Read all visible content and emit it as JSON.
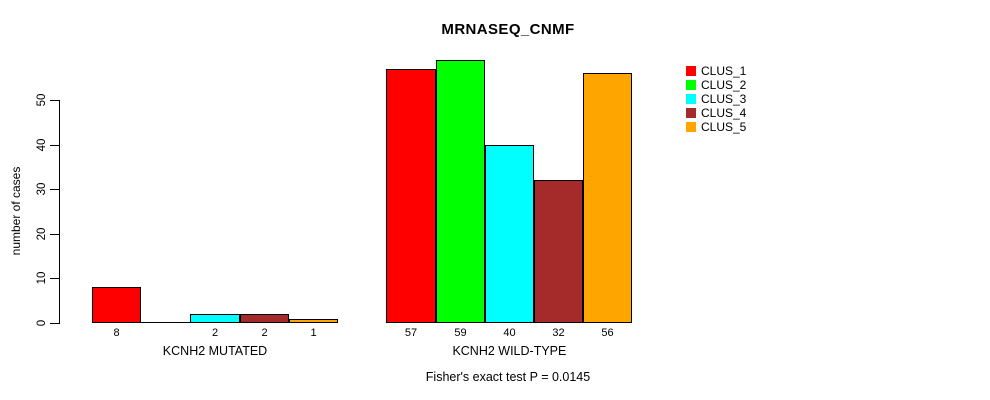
{
  "chart_data": {
    "type": "bar",
    "title": "MRNASEQ_CNMF",
    "ylabel": "number of cases",
    "xlabel": "",
    "annotation": "Fisher's exact test P = 0.0145",
    "ylim": [
      0,
      59
    ],
    "yticks": [
      0,
      10,
      20,
      30,
      40,
      50
    ],
    "grid": false,
    "legend_position": "right",
    "categories": [
      "KCNH2 MUTATED",
      "KCNH2 WILD-TYPE"
    ],
    "series": [
      {
        "name": "CLUS_1",
        "color": "#FF0000",
        "values": [
          8,
          57
        ]
      },
      {
        "name": "CLUS_2",
        "color": "#00FF00",
        "values": [
          0,
          59
        ]
      },
      {
        "name": "CLUS_3",
        "color": "#00FFFF",
        "values": [
          2,
          40
        ]
      },
      {
        "name": "CLUS_4",
        "color": "#A52A2A",
        "values": [
          2,
          32
        ]
      },
      {
        "name": "CLUS_5",
        "color": "#FFA500",
        "values": [
          1,
          56
        ]
      }
    ],
    "bar_labels_shown": true,
    "bar_labels_hide_zero": true
  },
  "colors": {
    "background": "#FFFFFF",
    "axis": "#000000",
    "bar_border": "#000000",
    "text": "#000000"
  }
}
